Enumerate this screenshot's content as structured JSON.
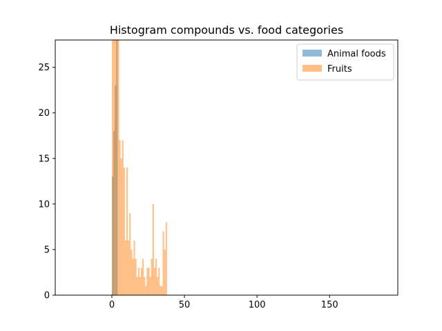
{
  "chart_data": {
    "type": "bar",
    "title": "Histogram compounds vs. food categories",
    "xlabel": "",
    "ylabel": "",
    "xlim": [
      -39,
      197
    ],
    "ylim": [
      0,
      28
    ],
    "grid": false,
    "legend": "top-right",
    "xticks": [
      0,
      50,
      100,
      150
    ],
    "yticks": [
      0,
      5,
      10,
      15,
      20,
      25
    ],
    "bin_width": 1,
    "series": [
      {
        "name": "Animal foods",
        "color": "#1f77b4",
        "opacity": 0.5,
        "bins": [
          {
            "x": 1,
            "value": 13
          },
          {
            "x": 2,
            "value": 18
          },
          {
            "x": 3,
            "value": 23
          },
          {
            "x": 4,
            "value": 28
          }
        ]
      },
      {
        "name": "Fruits",
        "color": "#ff7f0e",
        "opacity": 0.5,
        "bins": [
          {
            "x": 1,
            "value": 28
          },
          {
            "x": 2,
            "value": 28
          },
          {
            "x": 3,
            "value": 28
          },
          {
            "x": 4,
            "value": 28
          },
          {
            "x": 5,
            "value": 28
          },
          {
            "x": 6,
            "value": 17
          },
          {
            "x": 7,
            "value": 15
          },
          {
            "x": 8,
            "value": 17
          },
          {
            "x": 9,
            "value": 14
          },
          {
            "x": 10,
            "value": 6
          },
          {
            "x": 11,
            "value": 14
          },
          {
            "x": 12,
            "value": 6
          },
          {
            "x": 13,
            "value": 9
          },
          {
            "x": 14,
            "value": 5
          },
          {
            "x": 15,
            "value": 4
          },
          {
            "x": 16,
            "value": 6
          },
          {
            "x": 17,
            "value": 4
          },
          {
            "x": 18,
            "value": 2
          },
          {
            "x": 19,
            "value": 3
          },
          {
            "x": 20,
            "value": 2
          },
          {
            "x": 21,
            "value": 3
          },
          {
            "x": 22,
            "value": 4
          },
          {
            "x": 23,
            "value": 2
          },
          {
            "x": 24,
            "value": 1
          },
          {
            "x": 25,
            "value": 3
          },
          {
            "x": 26,
            "value": 3
          },
          {
            "x": 27,
            "value": 2
          },
          {
            "x": 28,
            "value": 4
          },
          {
            "x": 29,
            "value": 10
          },
          {
            "x": 30,
            "value": 3
          },
          {
            "x": 31,
            "value": 4
          },
          {
            "x": 32,
            "value": 2
          },
          {
            "x": 33,
            "value": 3
          },
          {
            "x": 34,
            "value": 1
          },
          {
            "x": 35,
            "value": 1
          },
          {
            "x": 36,
            "value": 7
          },
          {
            "x": 37,
            "value": 5
          },
          {
            "x": 38,
            "value": 8
          }
        ]
      }
    ]
  }
}
